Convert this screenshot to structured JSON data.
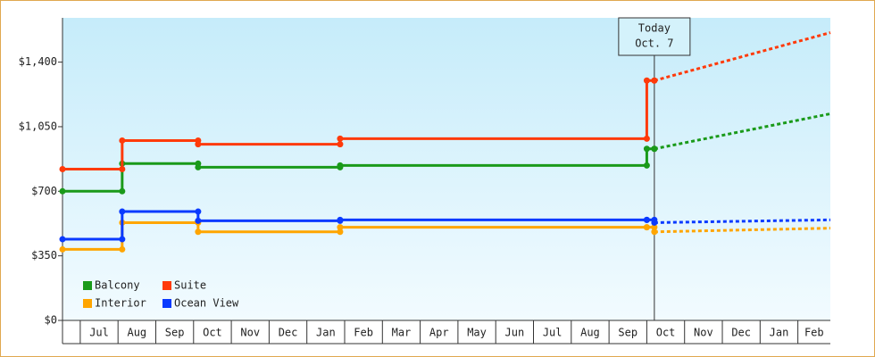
{
  "chart_data": {
    "type": "step-line",
    "xlim": [
      -0.47,
      19.86
    ],
    "ylim": [
      0,
      1640
    ],
    "yticks": [
      {
        "value": 0,
        "label": "$0"
      },
      {
        "value": 350,
        "label": "$350"
      },
      {
        "value": 700,
        "label": "$700"
      },
      {
        "value": 1050,
        "label": "$1,050"
      },
      {
        "value": 1400,
        "label": "$1,400"
      }
    ],
    "xticks": [
      {
        "value": 0,
        "label": "Jul"
      },
      {
        "value": 1,
        "label": "Aug"
      },
      {
        "value": 2,
        "label": "Sep"
      },
      {
        "value": 3,
        "label": "Oct"
      },
      {
        "value": 4,
        "label": "Nov"
      },
      {
        "value": 5,
        "label": "Dec"
      },
      {
        "value": 6,
        "label": "Jan"
      },
      {
        "value": 7,
        "label": "Feb"
      },
      {
        "value": 8,
        "label": "Mar"
      },
      {
        "value": 9,
        "label": "Apr"
      },
      {
        "value": 10,
        "label": "May"
      },
      {
        "value": 11,
        "label": "Jun"
      },
      {
        "value": 12,
        "label": "Jul"
      },
      {
        "value": 13,
        "label": "Aug"
      },
      {
        "value": 14,
        "label": "Sep"
      },
      {
        "value": 15,
        "label": "Oct"
      },
      {
        "value": 16,
        "label": "Nov"
      },
      {
        "value": 17,
        "label": "Dec"
      },
      {
        "value": 18,
        "label": "Jan"
      },
      {
        "value": 19,
        "label": "Feb"
      }
    ],
    "annotation": {
      "x": 15.2,
      "lines": [
        "Today",
        "Oct. 7"
      ]
    },
    "legend": "lower left",
    "series": [
      {
        "name": "Balcony",
        "color": "#1a9a1a",
        "x": [
          -0.47,
          1.11,
          3.12,
          6.88,
          15.0,
          15.2
        ],
        "values": [
          700,
          850,
          830,
          840,
          930,
          930
        ],
        "forecast": {
          "x": [
            15.2,
            19.86
          ],
          "values": [
            930,
            1120
          ]
        }
      },
      {
        "name": "Suite",
        "color": "#ff3a0a",
        "x": [
          -0.47,
          1.11,
          3.12,
          6.88,
          15.0,
          15.2
        ],
        "values": [
          820,
          975,
          955,
          985,
          1300,
          1300
        ],
        "forecast": {
          "x": [
            15.2,
            19.86
          ],
          "values": [
            1300,
            1560
          ]
        }
      },
      {
        "name": "Interior",
        "color": "#ffa500",
        "x": [
          -0.47,
          1.11,
          3.12,
          6.88,
          15.0,
          15.2
        ],
        "values": [
          385,
          530,
          480,
          505,
          505,
          480
        ],
        "forecast": {
          "x": [
            15.2,
            19.86
          ],
          "values": [
            480,
            500
          ]
        }
      },
      {
        "name": "Ocean View",
        "color": "#0a3aff",
        "x": [
          -0.47,
          1.11,
          3.12,
          6.88,
          15.0,
          15.2
        ],
        "values": [
          440,
          590,
          540,
          545,
          545,
          530
        ],
        "forecast": {
          "x": [
            15.2,
            19.86
          ],
          "values": [
            530,
            545
          ]
        }
      }
    ]
  }
}
